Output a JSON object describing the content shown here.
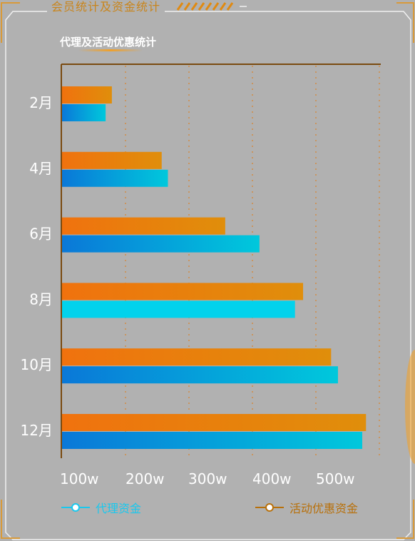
{
  "panel": {
    "title": "会员统计及资金统计"
  },
  "chart_data": {
    "type": "bar",
    "orientation": "horizontal",
    "title": "代理及活动优惠统计",
    "categories": [
      "2月",
      "4月",
      "6月",
      "8月",
      "10月",
      "12月"
    ],
    "x_ticks": [
      "100w",
      "200w",
      "300w",
      "400w",
      "500w"
    ],
    "xlim": [
      100,
      605
    ],
    "grid": true,
    "legend_position": "bottom",
    "series": [
      {
        "name": "活动优惠资金",
        "values": [
          180,
          260,
          362,
          487,
          532,
          588
        ],
        "color": "#f0720e",
        "color_end": "#e08e0b"
      },
      {
        "name": "代理资金",
        "values": [
          170,
          270,
          417,
          474,
          543,
          582
        ],
        "color": "#0a78d8",
        "color_end": "#00c8dc"
      }
    ]
  },
  "legend": {
    "agent_label": "代理资金",
    "promo_label": "活动优惠资金",
    "agent_color": "#19c8ee",
    "promo_color": "#b8700a"
  }
}
